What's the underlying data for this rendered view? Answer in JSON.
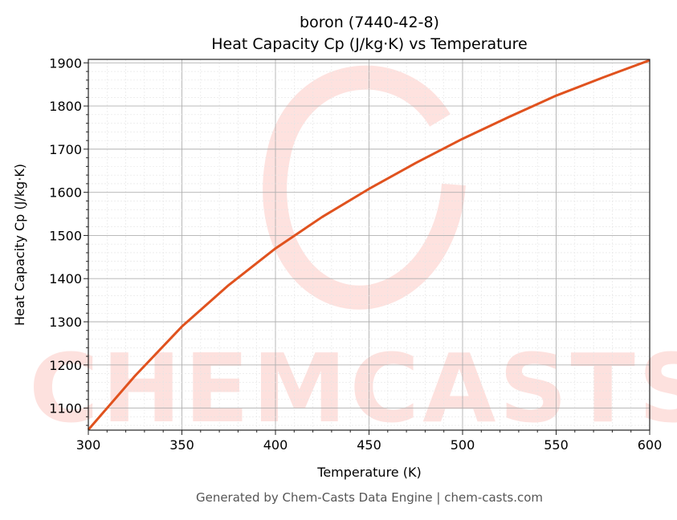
{
  "chart_data": {
    "type": "line",
    "title_line1": "boron (7440-42-8)",
    "title_line2": "Heat Capacity Cp (J/kg·K) vs Temperature",
    "xlabel": "Temperature (K)",
    "ylabel": "Heat Capacity Cp (J/kg·K)",
    "xlim": [
      300,
      600
    ],
    "ylim": [
      1049,
      1908
    ],
    "xticks": [
      300,
      350,
      400,
      450,
      500,
      550,
      600
    ],
    "yticks": [
      1100,
      1200,
      1300,
      1400,
      1500,
      1600,
      1700,
      1800,
      1900
    ],
    "grid": true,
    "series": [
      {
        "name": "Cp",
        "color": "#e0521e",
        "x": [
          300,
          325,
          350,
          375,
          400,
          425,
          450,
          475,
          500,
          525,
          550,
          575,
          600
        ],
        "y": [
          1050,
          1175,
          1289,
          1385,
          1470,
          1543,
          1608,
          1668,
          1724,
          1775,
          1824,
          1866,
          1906
        ]
      }
    ],
    "watermark": "CHEMCASTS",
    "footer": "Generated by Chem-Casts Data Engine | chem-casts.com"
  }
}
